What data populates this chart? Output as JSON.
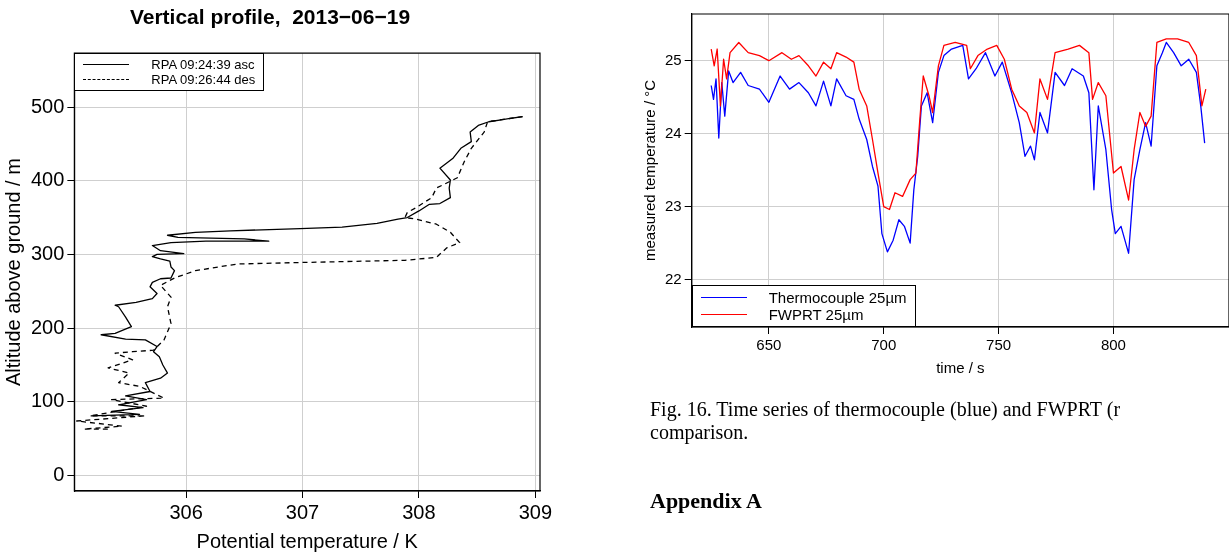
{
  "chart_data": [
    {
      "type": "line",
      "title": "Vertical profile,  2013−06−19",
      "xlabel": "Potential temperature / K",
      "ylabel": "Altitude above ground / m",
      "xlim": [
        305.04,
        309.04
      ],
      "xticks": [
        306,
        307,
        308,
        309
      ],
      "ylim": [
        -21,
        573
      ],
      "yticks": [
        0,
        100,
        200,
        300,
        400,
        500
      ],
      "grid": true,
      "legend": "top left",
      "series": [
        {
          "name": "RPA 09:24:39 asc",
          "color": "#000000",
          "line_style": "solid",
          "x": [
            305.18,
            305.6,
            305.36,
            305.63,
            305.42,
            305.66,
            305.48,
            305.69,
            305.65,
            305.78,
            305.84,
            305.8,
            305.77,
            305.72,
            305.75,
            305.65,
            305.48,
            305.27,
            305.39,
            305.53,
            305.48,
            305.42,
            305.39,
            305.57,
            305.71,
            305.75,
            305.69,
            305.71,
            305.78,
            305.87,
            305.9,
            305.87,
            305.86,
            305.78,
            305.71,
            305.75,
            305.98,
            305.78,
            305.71,
            305.87,
            306.17,
            306.71,
            306.5,
            305.93,
            305.84,
            306.08,
            306.38,
            306.98,
            307.34,
            307.64,
            307.82,
            307.9,
            308.0,
            308.09,
            308.18,
            308.27,
            308.26,
            308.27,
            308.18,
            308.29,
            308.36,
            308.45,
            308.44,
            308.51,
            308.6,
            308.72,
            308.89
          ],
          "values": [
            81,
            83,
            87,
            92,
            96,
            103,
            108,
            114,
            126,
            132,
            139,
            150,
            161,
            168,
            175,
            184,
            185,
            191,
            193,
            202,
            215,
            229,
            231,
            235,
            240,
            247,
            256,
            262,
            267,
            268,
            278,
            283,
            291,
            294,
            297,
            300,
            301,
            305,
            312,
            316,
            318,
            318,
            321,
            323,
            326,
            330,
            332,
            335,
            337,
            342,
            348,
            350,
            359,
            368,
            369,
            377,
            390,
            401,
            417,
            430,
            444,
            453,
            466,
            475,
            480,
            483,
            487
          ]
        },
        {
          "name": "RPA 09:26:44 des",
          "color": "#000000",
          "line_style": "dashed",
          "x": [
            308.89,
            308.59,
            308.56,
            308.45,
            308.39,
            308.33,
            308.15,
            308.11,
            307.97,
            307.9,
            307.88,
            307.97,
            308.15,
            308.27,
            308.35,
            308.24,
            308.15,
            307.88,
            306.98,
            306.44,
            306.08,
            305.9,
            305.78,
            305.87,
            305.84,
            305.87,
            305.81,
            305.72,
            305.54,
            305.39,
            305.54,
            305.33,
            305.51,
            305.42,
            305.6,
            305.81,
            305.36,
            305.66,
            305.18,
            305.65,
            305.06,
            305.45,
            305.12,
            305.36
          ],
          "values": [
            487,
            480,
            466,
            444,
            426,
            404,
            390,
            377,
            363,
            357,
            350,
            348,
            341,
            330,
            316,
            309,
            296,
            292,
            289,
            287,
            278,
            268,
            258,
            242,
            229,
            206,
            184,
            170,
            168,
            166,
            157,
            146,
            139,
            126,
            121,
            105,
            103,
            94,
            81,
            81,
            74,
            67,
            63,
            63
          ]
        }
      ]
    },
    {
      "type": "line",
      "xlabel": "time / s",
      "ylabel": "measured temperature / °C",
      "xlim": [
        616.4,
        850.3
      ],
      "xticks": [
        650,
        700,
        750,
        800
      ],
      "ylim": [
        21.35,
        25.64
      ],
      "yticks": [
        22,
        23,
        24,
        25
      ],
      "grid": true,
      "legend": "bottom left",
      "annotations": [
        "Fig. 16. Time series of thermocouple (blue) and FWPRT (r",
        "comparison.",
        "Appendix A"
      ],
      "series": [
        {
          "name": "Thermocouple 25µm",
          "color": "#0000ff",
          "line_style": "solid",
          "x": [
            624.9,
            625.9,
            627.0,
            628.2,
            629.5,
            630.8,
            632.5,
            634.4,
            637.7,
            641.0,
            645.9,
            650.0,
            654.9,
            659.0,
            663.1,
            667.2,
            670.5,
            673.8,
            677.0,
            679.5,
            683.6,
            687.0,
            689.3,
            692.6,
            695.1,
            697.5,
            699.2,
            701.6,
            704.1,
            706.6,
            709.0,
            711.5,
            713.1,
            714.8,
            716.4,
            718.9,
            721.3,
            723.8,
            726.2,
            729.5,
            734.4,
            736.9,
            740.2,
            744.3,
            748.4,
            751.6,
            755.7,
            759.0,
            761.5,
            763.9,
            765.6,
            768.0,
            771.3,
            774.6,
            778.7,
            782.0,
            786.9,
            789.3,
            791.5,
            793.4,
            796.7,
            799.2,
            800.8,
            803.3,
            806.6,
            809.0,
            811.5,
            814.0,
            816.4,
            818.9,
            821.3,
            823.0,
            826.2,
            829.5,
            832.8,
            836.1,
            838.0,
            839.7
          ],
          "values": [
            24.66,
            24.47,
            24.75,
            23.94,
            24.7,
            24.24,
            24.86,
            24.7,
            24.84,
            24.66,
            24.61,
            24.43,
            24.79,
            24.61,
            24.7,
            24.56,
            24.38,
            24.72,
            24.38,
            24.75,
            24.52,
            24.47,
            24.2,
            23.92,
            23.55,
            23.28,
            22.63,
            22.38,
            22.54,
            22.82,
            22.73,
            22.5,
            23.23,
            23.69,
            24.38,
            24.56,
            24.15,
            24.84,
            25.07,
            25.16,
            25.21,
            24.75,
            24.89,
            25.11,
            24.79,
            24.98,
            24.56,
            24.15,
            23.69,
            23.83,
            23.64,
            24.29,
            24.01,
            24.84,
            24.66,
            24.89,
            24.79,
            24.56,
            23.23,
            24.38,
            23.78,
            22.96,
            22.63,
            22.73,
            22.36,
            23.37,
            23.78,
            24.15,
            23.83,
            24.93,
            25.11,
            25.25,
            25.11,
            24.93,
            25.02,
            24.84,
            24.38,
            23.87
          ]
        },
        {
          "name": "FWPRT 25µm",
          "color": "#ff0000",
          "line_style": "solid",
          "x": [
            624.9,
            626.2,
            627.5,
            628.9,
            630.3,
            631.6,
            633.1,
            636.9,
            641.0,
            645.9,
            650.0,
            655.7,
            659.8,
            663.1,
            667.2,
            670.5,
            673.8,
            677.0,
            679.5,
            683.6,
            687.0,
            689.3,
            692.6,
            695.1,
            697.5,
            700.0,
            702.5,
            704.9,
            708.2,
            711.5,
            714.0,
            715.6,
            717.2,
            719.7,
            721.3,
            723.8,
            726.2,
            731.1,
            736.1,
            737.7,
            741.0,
            745.1,
            749.2,
            752.5,
            755.7,
            759.0,
            762.3,
            765.6,
            768.0,
            771.3,
            774.6,
            780.3,
            785.2,
            789.3,
            790.9,
            793.4,
            796.7,
            800.0,
            803.3,
            806.6,
            809.0,
            811.5,
            814.0,
            816.4,
            818.9,
            823.0,
            827.9,
            832.8,
            836.1,
            838.5,
            840.2
          ],
          "values": [
            25.16,
            24.93,
            25.16,
            24.38,
            25.02,
            24.75,
            25.11,
            25.25,
            25.11,
            25.07,
            25.0,
            25.11,
            25.02,
            25.07,
            24.93,
            24.79,
            24.98,
            24.89,
            25.11,
            25.05,
            24.98,
            24.61,
            24.38,
            23.92,
            23.46,
            23.0,
            22.96,
            23.19,
            23.14,
            23.37,
            23.46,
            24.15,
            24.79,
            24.52,
            24.29,
            24.93,
            25.21,
            25.25,
            25.21,
            24.89,
            25.07,
            25.16,
            25.21,
            25.02,
            24.61,
            24.38,
            24.29,
            24.01,
            24.75,
            24.47,
            25.11,
            25.16,
            25.21,
            25.11,
            24.47,
            24.7,
            24.52,
            23.46,
            23.55,
            23.09,
            23.78,
            24.29,
            24.1,
            24.24,
            25.25,
            25.3,
            25.3,
            25.25,
            25.07,
            24.38,
            24.61
          ]
        }
      ]
    }
  ]
}
